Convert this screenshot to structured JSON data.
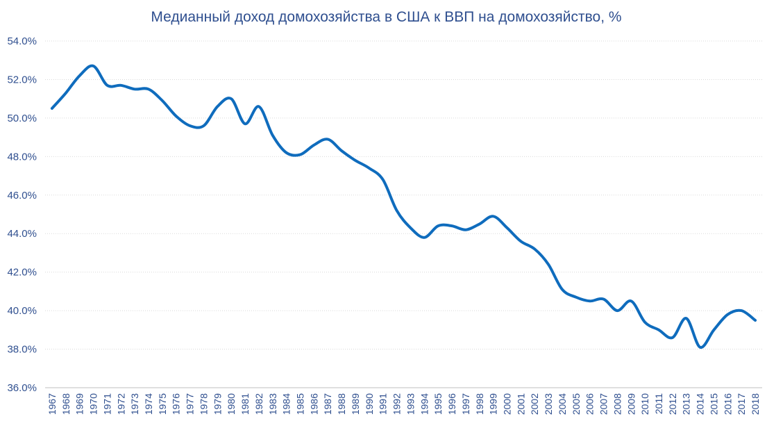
{
  "chart_data": {
    "type": "line",
    "title": "Медианный доход домохозяйства в США к ВВП на домохозяйство, %",
    "xlabel": "",
    "ylabel": "",
    "ylim": [
      36.0,
      54.0
    ],
    "y_ticks": [
      "36.0%",
      "38.0%",
      "40.0%",
      "42.0%",
      "44.0%",
      "46.0%",
      "48.0%",
      "50.0%",
      "52.0%",
      "54.0%"
    ],
    "grid": true,
    "legend": "none",
    "line_color": "#0f6cbd",
    "categories": [
      "1967",
      "1968",
      "1969",
      "1970",
      "1971",
      "1972",
      "1973",
      "1974",
      "1975",
      "1976",
      "1977",
      "1978",
      "1979",
      "1980",
      "1981",
      "1982",
      "1983",
      "1984",
      "1985",
      "1986",
      "1987",
      "1988",
      "1989",
      "1990",
      "1991",
      "1992",
      "1993",
      "1994",
      "1995",
      "1996",
      "1997",
      "1998",
      "1999",
      "2000",
      "2001",
      "2002",
      "2003",
      "2004",
      "2005",
      "2006",
      "2007",
      "2008",
      "2009",
      "2010",
      "2011",
      "2012",
      "2013",
      "2014",
      "2015",
      "2016",
      "2017",
      "2018"
    ],
    "series": [
      {
        "values": [
          50.5,
          51.3,
          52.2,
          52.7,
          51.7,
          51.7,
          51.5,
          51.5,
          50.9,
          50.1,
          49.6,
          49.6,
          50.6,
          51.0,
          49.7,
          50.6,
          49.1,
          48.2,
          48.1,
          48.6,
          48.9,
          48.3,
          47.8,
          47.4,
          46.8,
          45.2,
          44.3,
          43.8,
          44.4,
          44.4,
          44.2,
          44.5,
          44.9,
          44.3,
          43.6,
          43.2,
          42.4,
          41.1,
          40.7,
          40.5,
          40.6,
          40.0,
          40.5,
          39.4,
          39.0,
          38.6,
          39.6,
          38.1,
          39.0,
          39.8,
          40.0,
          39.5
        ]
      }
    ]
  }
}
